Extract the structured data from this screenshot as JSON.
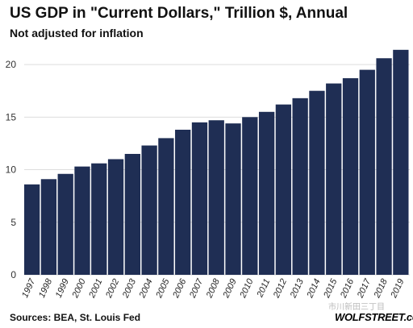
{
  "chart_data": {
    "type": "bar",
    "title": "US GDP in \"Current Dollars,\" Trillion $, Annual",
    "subtitle": "Not adjusted for inflation",
    "categories": [
      "1997",
      "1998",
      "1999",
      "2000",
      "2001",
      "2002",
      "2003",
      "2004",
      "2005",
      "2006",
      "2007",
      "2008",
      "2009",
      "2010",
      "2011",
      "2012",
      "2013",
      "2014",
      "2015",
      "2016",
      "2017",
      "2018",
      "2019"
    ],
    "values": [
      8.6,
      9.1,
      9.6,
      10.3,
      10.6,
      11.0,
      11.5,
      12.3,
      13.0,
      13.8,
      14.5,
      14.7,
      14.4,
      15.0,
      15.5,
      16.2,
      16.8,
      17.5,
      18.2,
      18.7,
      19.5,
      20.6,
      21.4
    ],
    "ylim": [
      0,
      22
    ],
    "yticks": [
      0,
      5,
      10,
      15,
      20
    ],
    "xlabel": "",
    "ylabel": "",
    "grid": true,
    "bar_color": "#1f2e54",
    "grid_color": "#dddddd"
  },
  "footer": {
    "sources": "Sources: BEA, St. Louis Fed",
    "watermark": "市川新田三丁目",
    "brand": "WOLFSTREET.com"
  }
}
